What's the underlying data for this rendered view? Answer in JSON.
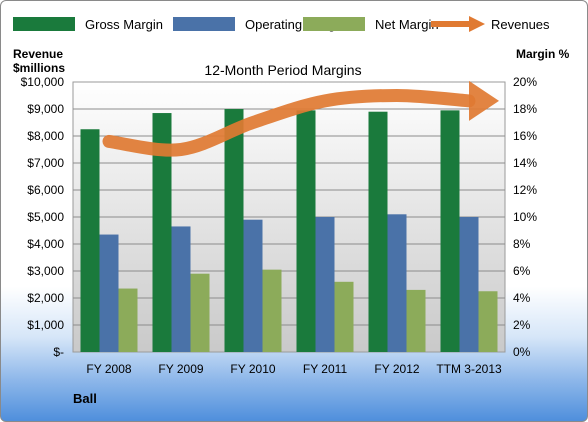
{
  "chart_data": {
    "type": "bar",
    "title": "12-Month Period Margins",
    "company": "Ball",
    "left_axis_label_line1": "Revenue",
    "left_axis_label_line2": "$millions",
    "right_axis_label": "Margin %",
    "categories": [
      "FY 2008",
      "FY 2009",
      "FY 2010",
      "FY 2011",
      "FY 2012",
      "TTM 3-2013"
    ],
    "left_ylim": [
      0,
      10000
    ],
    "right_ylim": [
      0,
      20
    ],
    "left_ticks": [
      "$-",
      "$1,000",
      "$2,000",
      "$3,000",
      "$4,000",
      "$5,000",
      "$6,000",
      "$7,000",
      "$8,000",
      "$9,000",
      "$10,000"
    ],
    "right_ticks": [
      "0%",
      "2%",
      "4%",
      "6%",
      "8%",
      "10%",
      "12%",
      "14%",
      "16%",
      "18%",
      "20%"
    ],
    "series": [
      {
        "name": "Gross Margin",
        "axis": "right",
        "color": "#1a7a3c",
        "values": [
          16.5,
          17.7,
          18.0,
          17.9,
          17.8,
          17.9
        ]
      },
      {
        "name": "Operating Margin",
        "axis": "right",
        "color": "#4a72a8",
        "values": [
          8.7,
          9.3,
          9.8,
          10.0,
          10.2,
          10.0
        ]
      },
      {
        "name": "Net Margin",
        "axis": "right",
        "color": "#8cab5a",
        "values": [
          4.7,
          5.8,
          6.1,
          5.2,
          4.6,
          4.5
        ]
      },
      {
        "name": "Revenues",
        "axis": "left",
        "color": "#e07a32",
        "values": [
          7800,
          7500,
          8500,
          9300,
          9500,
          9300
        ]
      }
    ],
    "legend_position": "top",
    "grid": true
  }
}
